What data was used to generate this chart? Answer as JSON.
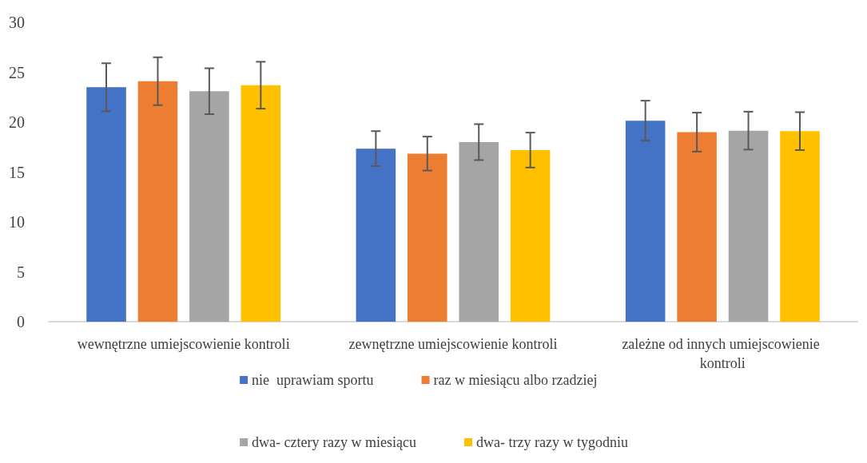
{
  "chart_data": {
    "type": "bar",
    "categories": [
      "wewnętrzne umiejscowienie kontroli",
      "zewnętrzne umiejscowienie kontroli",
      "zależne od innych umiejscowienie kontroli"
    ],
    "series": [
      {
        "name": "nie  uprawiam sportu",
        "color": "#4472c4",
        "values": [
          23.5,
          17.35,
          20.15
        ],
        "errors": [
          2.4,
          1.75,
          2.0
        ]
      },
      {
        "name": "raz w miesiącu albo rzadziej",
        "color": "#ed7d31",
        "values": [
          24.1,
          16.85,
          19.0
        ],
        "errors": [
          2.4,
          1.7,
          1.95
        ]
      },
      {
        "name": "dwa- cztery razy w miesiącu",
        "color": "#a5a5a5",
        "values": [
          23.1,
          18.0,
          19.15
        ],
        "errors": [
          2.3,
          1.8,
          1.9
        ]
      },
      {
        "name": "dwa- trzy razy w tygodniu",
        "color": "#ffc000",
        "values": [
          23.7,
          17.2,
          19.1
        ],
        "errors": [
          2.35,
          1.75,
          1.9
        ]
      }
    ],
    "ylim": [
      0,
      30
    ],
    "yticks": [
      0,
      5,
      10,
      15,
      20,
      25,
      30
    ],
    "grid": false,
    "legend": "bottom"
  }
}
